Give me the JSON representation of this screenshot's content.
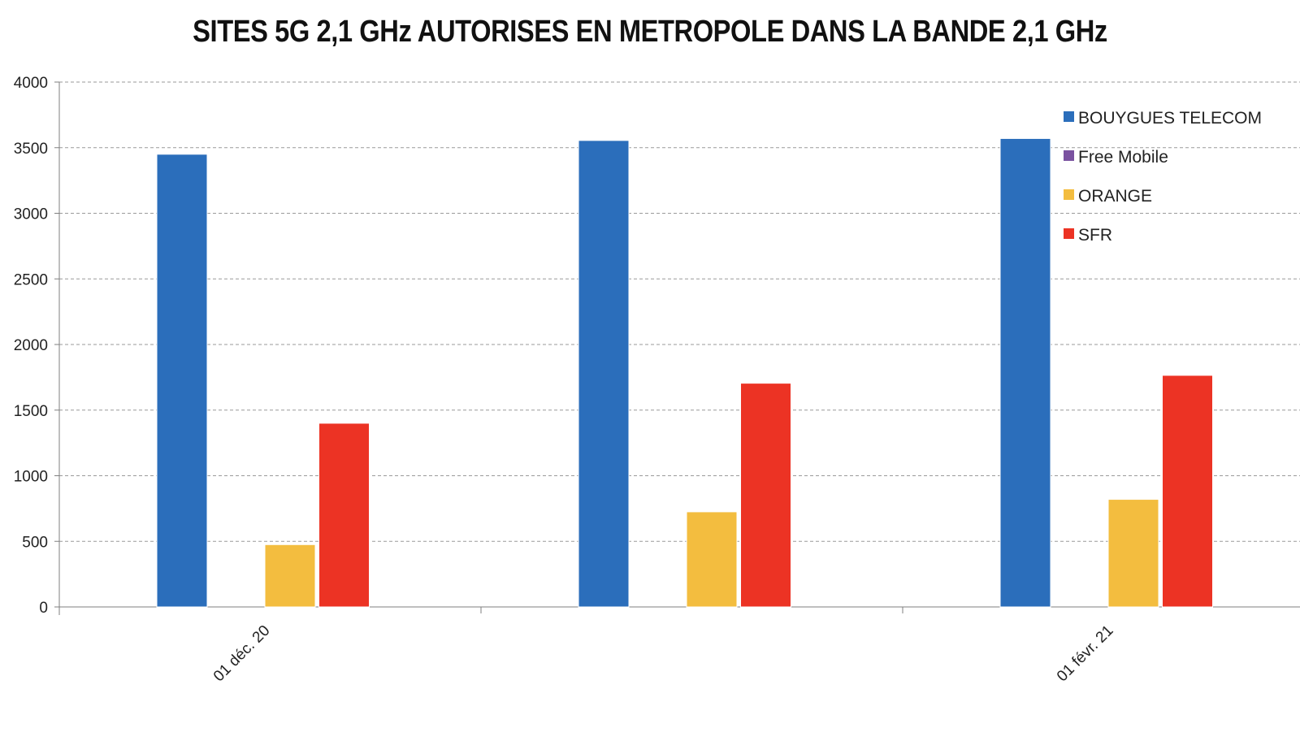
{
  "chart_data": {
    "type": "bar",
    "title": "SITES 5G 2,1 GHz AUTORISES EN METROPOLE DANS LA BANDE 2,1 GHz",
    "xlabel": "",
    "ylabel": "",
    "ylim": [
      0,
      4000
    ],
    "yticks": [
      0,
      500,
      1000,
      1500,
      2000,
      2500,
      3000,
      3500,
      4000
    ],
    "categories": [
      "01 déc. 20",
      "",
      "01 févr. 21"
    ],
    "grid": true,
    "legend_position": "top-right",
    "series": [
      {
        "name": "BOUYGUES TELECOM",
        "color": "#2B6EBB",
        "values": [
          3450,
          3555,
          3570
        ]
      },
      {
        "name": "Free Mobile",
        "color": "#7A52A0",
        "values": [
          0,
          0,
          0
        ]
      },
      {
        "name": "ORANGE",
        "color": "#F3BD3F",
        "values": [
          475,
          725,
          820
        ]
      },
      {
        "name": "SFR",
        "color": "#EC3324",
        "values": [
          1400,
          1705,
          1765
        ]
      }
    ]
  }
}
